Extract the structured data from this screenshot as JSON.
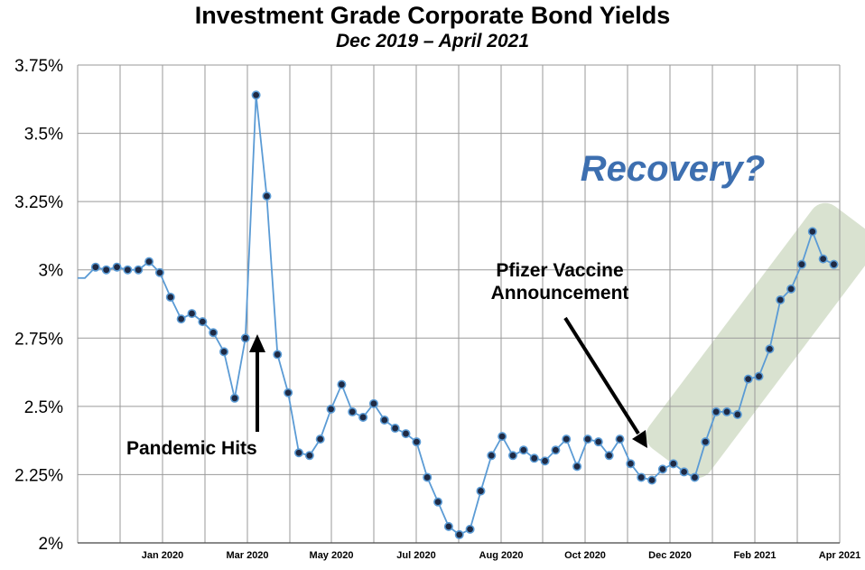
{
  "chart_data": {
    "type": "line",
    "title": "Investment Grade Corporate Bond Yields",
    "subtitle": "Dec 2019 – April 2021",
    "xlabel": "",
    "ylabel": "",
    "ylim": [
      2.0,
      3.75
    ],
    "y_ticks": [
      "3.75%",
      "3.5%",
      "3.25%",
      "3%",
      "2.75%",
      "2.5%",
      "2.25%",
      "2%"
    ],
    "y_tick_values": [
      3.75,
      3.5,
      3.25,
      3.0,
      2.75,
      2.5,
      2.25,
      2.0
    ],
    "x_ticks": [
      "Jan 2020",
      "Mar 2020",
      "May 2020",
      "Jul 2020",
      "Aug 2020",
      "Oct 2020",
      "Dec 2020",
      "Feb 2021",
      "Apr 2021"
    ],
    "grid": true,
    "series": [
      {
        "color": "#5b9bd5",
        "marker_color": "#1f2a44",
        "values": [
          2.97,
          3.01,
          3.0,
          3.01,
          3.0,
          3.0,
          3.03,
          2.99,
          2.9,
          2.82,
          2.84,
          2.81,
          2.77,
          2.7,
          2.53,
          2.75,
          3.64,
          3.27,
          2.69,
          2.55,
          2.33,
          2.32,
          2.38,
          2.49,
          2.58,
          2.48,
          2.46,
          2.51,
          2.45,
          2.42,
          2.4,
          2.37,
          2.24,
          2.15,
          2.06,
          2.03,
          2.05,
          2.19,
          2.32,
          2.39,
          2.32,
          2.34,
          2.31,
          2.3,
          2.34,
          2.38,
          2.28,
          2.38,
          2.37,
          2.32,
          2.38,
          2.29,
          2.24,
          2.23,
          2.27,
          2.29,
          2.26,
          2.24,
          2.37,
          2.48,
          2.48,
          2.47,
          2.6,
          2.61,
          2.71,
          2.89,
          2.93,
          3.02,
          3.14,
          3.04,
          3.02
        ]
      }
    ],
    "annotations": {
      "pandemic": "Pandemic Hits",
      "pfizer_line1": "Pfizer Vaccine",
      "pfizer_line2": "Announcement",
      "recovery": "Recovery?"
    }
  }
}
